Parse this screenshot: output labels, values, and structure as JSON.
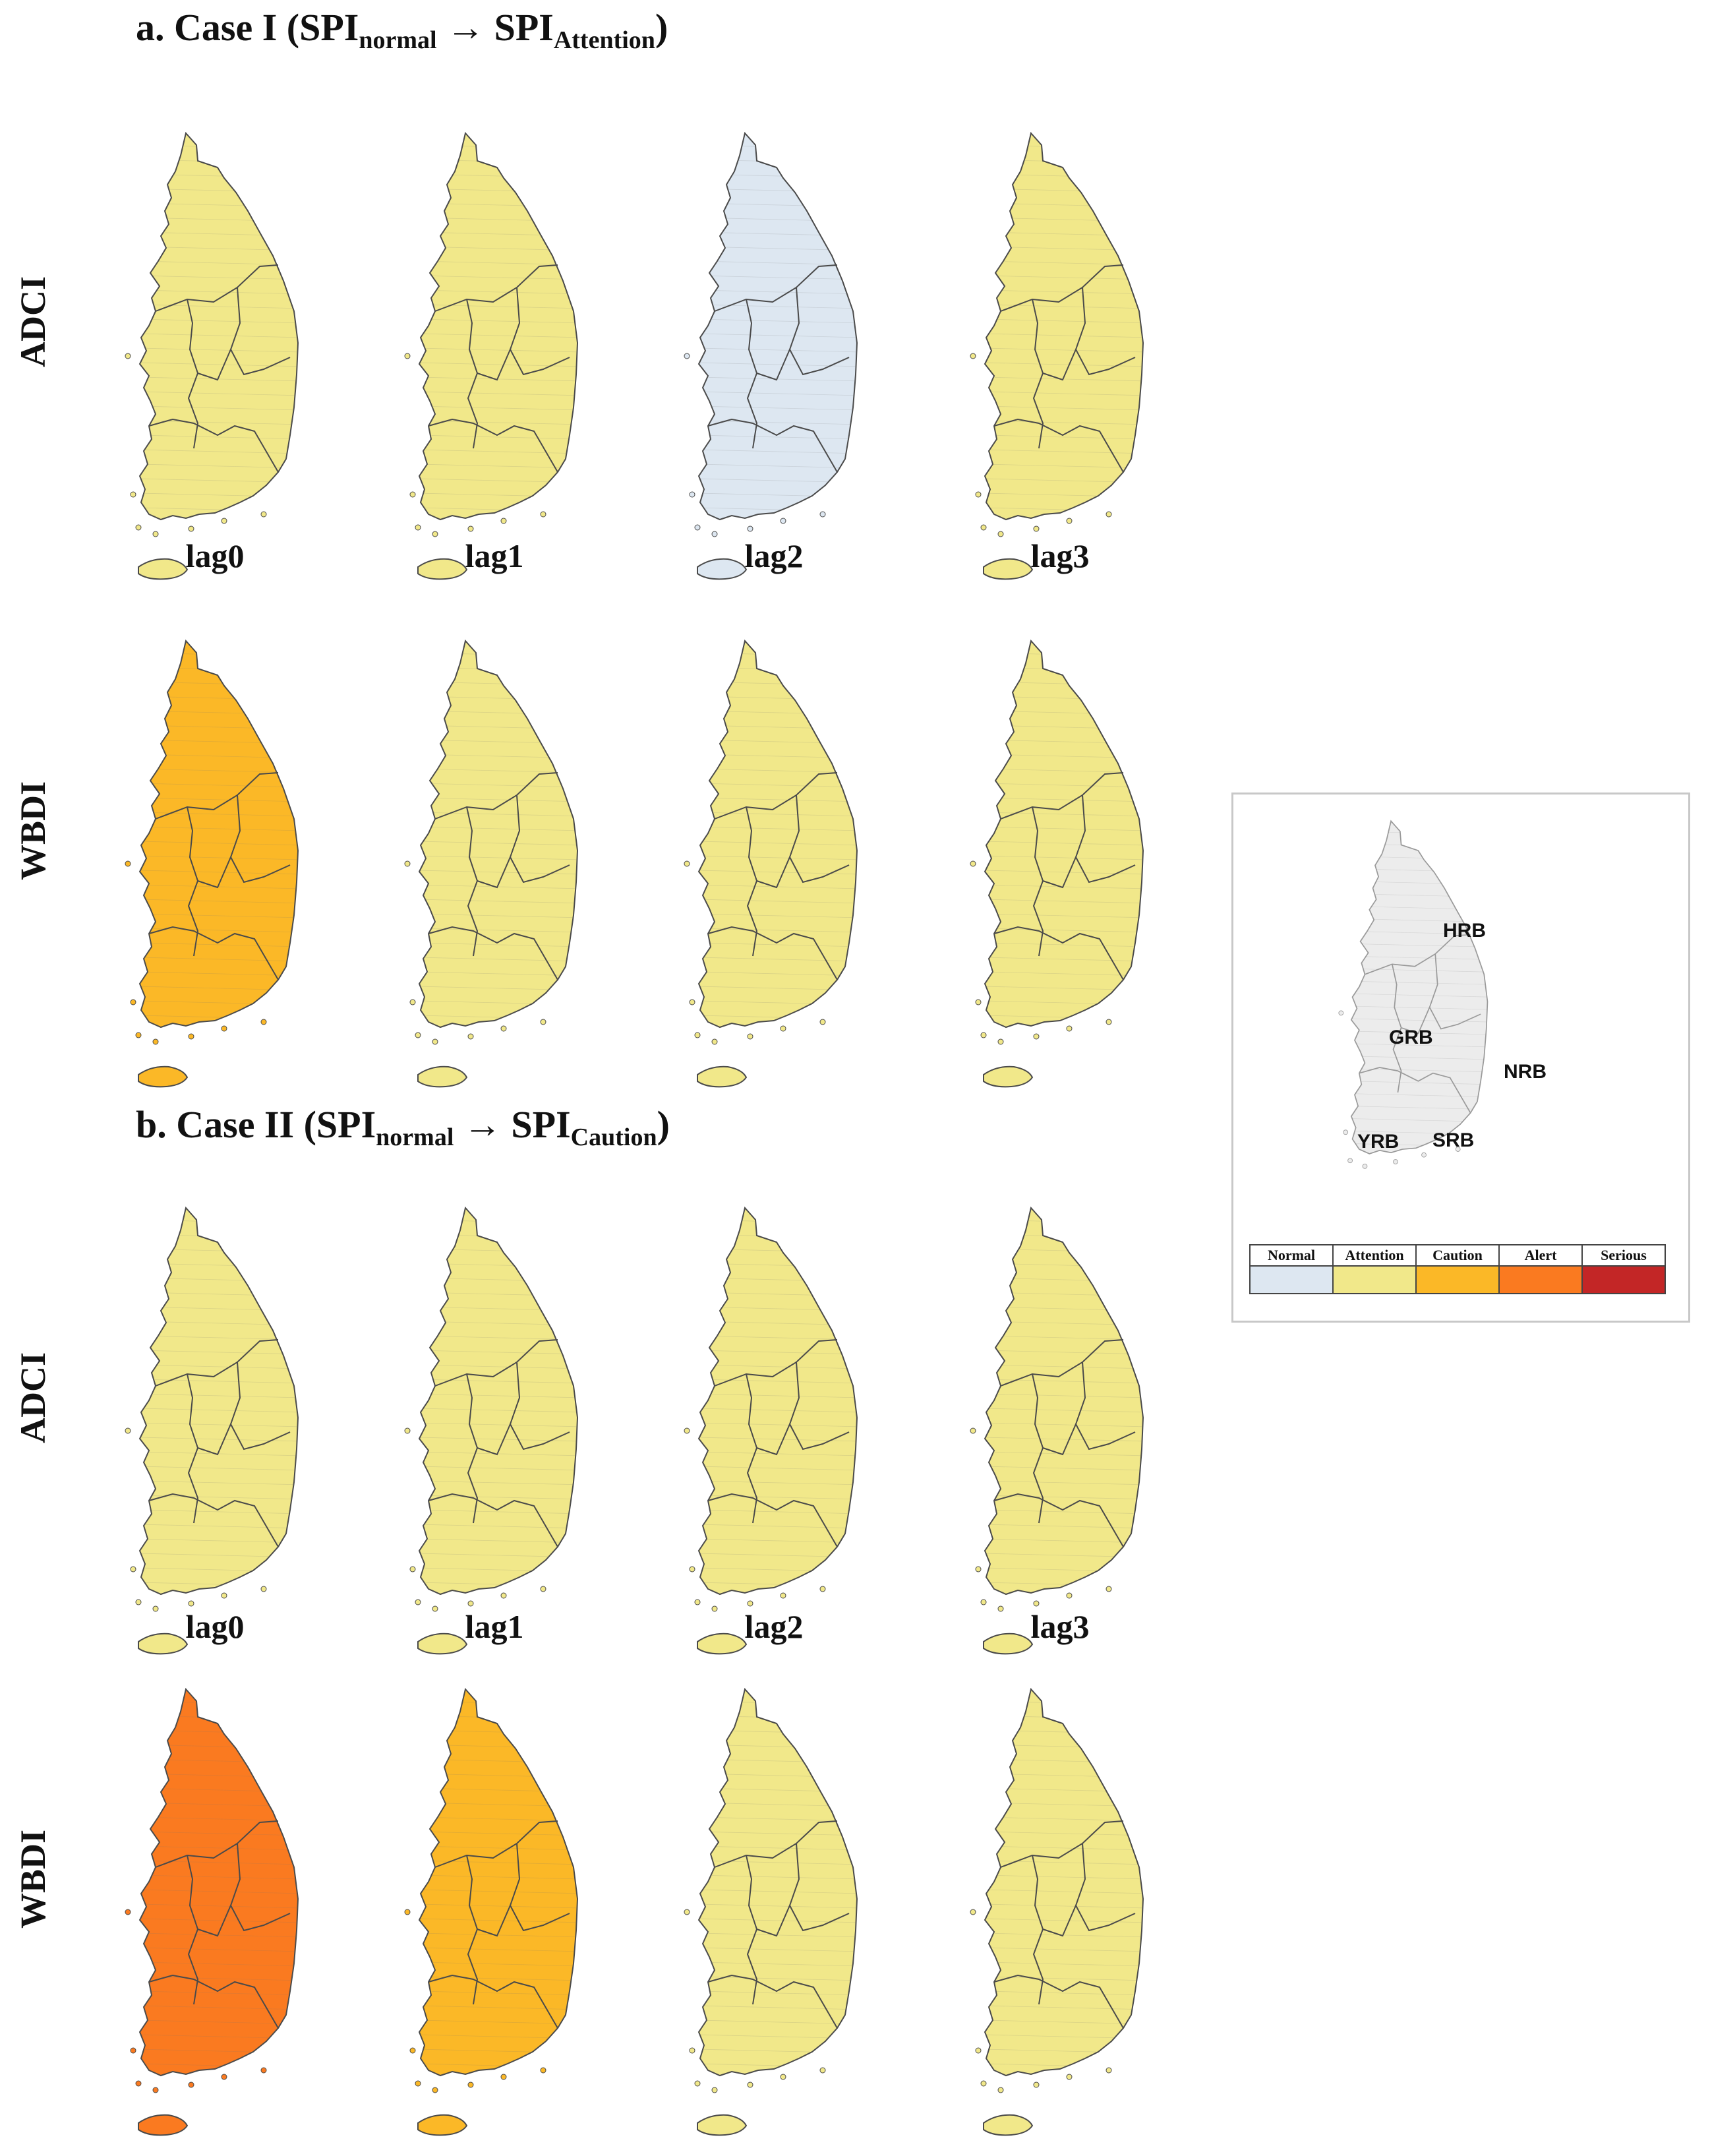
{
  "panel_a": {
    "title_main": "a. Case I (SPI",
    "title_sub1": "normal",
    "title_arrow": " → SPI",
    "title_sub2": "Attention",
    "title_close": ")"
  },
  "panel_b": {
    "title_main": "b. Case II (SPI",
    "title_sub1": "normal",
    "title_arrow": " → SPI",
    "title_sub2": "Caution",
    "title_close": ")"
  },
  "row_labels": {
    "adci": "ADCI",
    "wbdi": "WBDI"
  },
  "lags": [
    "lag0",
    "lag1",
    "lag2",
    "lag3"
  ],
  "classes": [
    "Normal",
    "Attention",
    "Caution",
    "Alert",
    "Serious"
  ],
  "colors": {
    "Normal": "#dde7f1",
    "Attention": "#f1e88a",
    "Caution": "#fbb827",
    "Alert": "#fa7a20",
    "Serious": "#c32626",
    "outline": "#4a4a4a",
    "basemap": "#ececec"
  },
  "maps": {
    "a_adci": {
      "lag0": "Attention",
      "lag1": "Attention",
      "lag2": "Normal",
      "lag3": "Attention"
    },
    "a_wbdi": {
      "lag0": "Caution",
      "lag1": "Attention",
      "lag2": "Attention",
      "lag3": "Attention"
    },
    "b_adci": {
      "lag0": "Attention",
      "lag1": "Attention",
      "lag2": "Attention",
      "lag3": "Attention"
    },
    "b_wbdi": {
      "lag0": "Alert",
      "lag1": "Caution",
      "lag2": "Attention",
      "lag3": "Attention"
    }
  },
  "basins": [
    "HRB",
    "GRB",
    "NRB",
    "YRB",
    "SRB"
  ]
}
